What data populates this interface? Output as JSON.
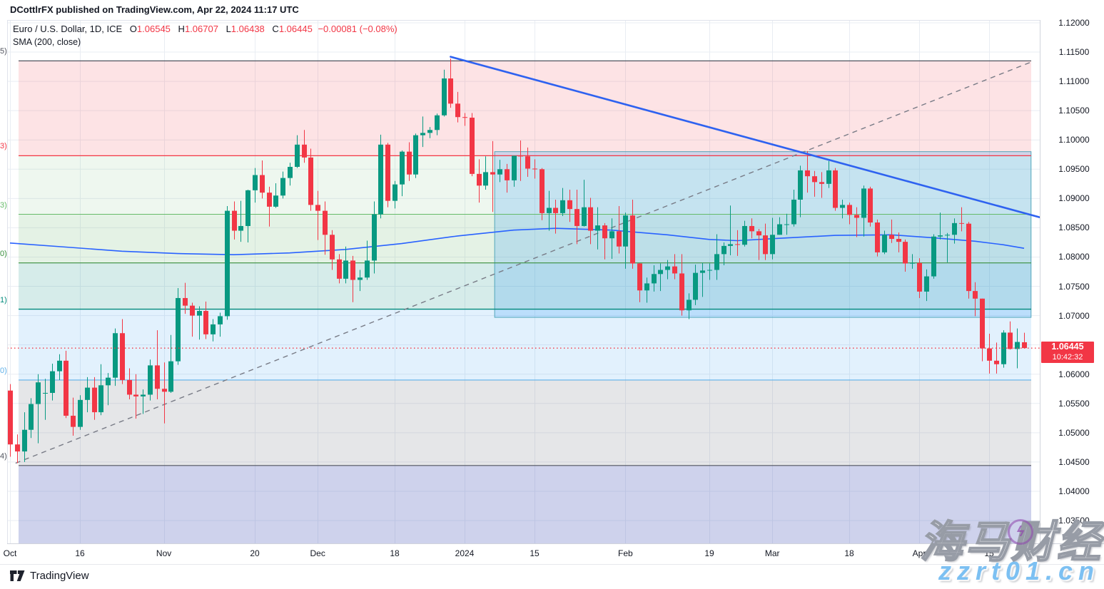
{
  "header": {
    "publisher": "DCottlrFX published on TradingView.com, Apr 22, 2024 11:17 UTC"
  },
  "legend": {
    "symbol": "Euro / U.S. Dollar, 1D, ICE",
    "o_label": "O",
    "o_val": "1.06545",
    "h_label": "H",
    "h_val": "1.06707",
    "l_label": "L",
    "l_val": "1.06438",
    "c_label": "C",
    "c_val": "1.06445",
    "change": "−0.00081 (−0.08%)",
    "indicator": "SMA (200, close)"
  },
  "price_badge": {
    "price": "1.06445",
    "countdown": "10:42:32",
    "bg": "#f23645"
  },
  "watermark": {
    "title": "海马财经",
    "site": "zzrt01.cn",
    "icon": "lightning-in-circle"
  },
  "footer": {
    "brand": "TradingView"
  },
  "chart_data": {
    "type": "candlestick",
    "title": "Euro / U.S. Dollar, 1D, ICE",
    "interval": "1D",
    "y_axis": {
      "top_price": 1.12,
      "tick_step": 0.005,
      "ticks": [
        "1.12000",
        "1.11500",
        "1.11000",
        "1.10500",
        "1.10000",
        "1.09500",
        "1.09000",
        "1.08500",
        "1.08000",
        "1.07500",
        "1.07000",
        "1.06500",
        "1.06000",
        "1.05500",
        "1.05000",
        "1.04500",
        "1.04000",
        "1.03500"
      ]
    },
    "x_ticks": [
      {
        "label": "Oct",
        "index": 0
      },
      {
        "label": "16",
        "index": 10
      },
      {
        "label": "Nov",
        "index": 22
      },
      {
        "label": "20",
        "index": 35
      },
      {
        "label": "Dec",
        "index": 44
      },
      {
        "label": "18",
        "index": 55
      },
      {
        "label": "2024",
        "index": 65
      },
      {
        "label": "15",
        "index": 75
      },
      {
        "label": "Feb",
        "index": 88
      },
      {
        "label": "19",
        "index": 100
      },
      {
        "label": "Mar",
        "index": 109
      },
      {
        "label": "18",
        "index": 120
      },
      {
        "label": "Apr",
        "index": 130
      },
      {
        "label": "15",
        "index": 140
      }
    ],
    "colors": {
      "up": "#089981",
      "down": "#f23645",
      "sma": "#2962ff",
      "trend": "#2e62f0",
      "dashed": "#787b86",
      "current": "#f23645",
      "grid": "#e9edf3",
      "separator": "#d1d4dc",
      "pane_border": "#e0e3eb"
    },
    "dates": [
      "Oct 2",
      "Oct 3",
      "Oct 4",
      "Oct 5",
      "Oct 6",
      "Oct 9",
      "Oct 10",
      "Oct 11",
      "Oct 12",
      "Oct 13",
      "Oct 16",
      "Oct 17",
      "Oct 18",
      "Oct 19",
      "Oct 20",
      "Oct 23",
      "Oct 24",
      "Oct 25",
      "Oct 26",
      "Oct 27",
      "Oct 30",
      "Oct 31",
      "Nov 1",
      "Nov 2",
      "Nov 3",
      "Nov 6",
      "Nov 7",
      "Nov 8",
      "Nov 9",
      "Nov 10",
      "Nov 13",
      "Nov 14",
      "Nov 15",
      "Nov 16",
      "Nov 17",
      "Nov 20",
      "Nov 21",
      "Nov 22",
      "Nov 23",
      "Nov 24",
      "Nov 27",
      "Nov 28",
      "Nov 29",
      "Nov 30",
      "Dec 1",
      "Dec 4",
      "Dec 5",
      "Dec 6",
      "Dec 7",
      "Dec 8",
      "Dec 11",
      "Dec 12",
      "Dec 13",
      "Dec 14",
      "Dec 15",
      "Dec 18",
      "Dec 19",
      "Dec 20",
      "Dec 21",
      "Dec 22",
      "Dec 25",
      "Dec 26",
      "Dec 27",
      "Dec 28",
      "Dec 29",
      "Jan 1",
      "Jan 2",
      "Jan 3",
      "Jan 4",
      "Jan 5",
      "Jan 8",
      "Jan 9",
      "Jan 10",
      "Jan 11",
      "Jan 12",
      "Jan 15",
      "Jan 16",
      "Jan 17",
      "Jan 18",
      "Jan 19",
      "Jan 22",
      "Jan 23",
      "Jan 24",
      "Jan 25",
      "Jan 26",
      "Jan 29",
      "Jan 30",
      "Jan 31",
      "Feb 1",
      "Feb 2",
      "Feb 5",
      "Feb 6",
      "Feb 7",
      "Feb 8",
      "Feb 9",
      "Feb 12",
      "Feb 13",
      "Feb 14",
      "Feb 15",
      "Feb 16",
      "Feb 19",
      "Feb 20",
      "Feb 21",
      "Feb 22",
      "Feb 23",
      "Feb 26",
      "Feb 27",
      "Feb 28",
      "Feb 29",
      "Mar 1",
      "Mar 4",
      "Mar 5",
      "Mar 6",
      "Mar 7",
      "Mar 8",
      "Mar 11",
      "Mar 12",
      "Mar 13",
      "Mar 14",
      "Mar 15",
      "Mar 18",
      "Mar 19",
      "Mar 20",
      "Mar 21",
      "Mar 22",
      "Mar 25",
      "Mar 26",
      "Mar 27",
      "Mar 28",
      "Mar 29",
      "Apr 1",
      "Apr 2",
      "Apr 3",
      "Apr 4",
      "Apr 5",
      "Apr 8",
      "Apr 9",
      "Apr 10",
      "Apr 11",
      "Apr 12",
      "Apr 15",
      "Apr 16",
      "Apr 17",
      "Apr 18",
      "Apr 19",
      "Apr 22"
    ],
    "ohlc": [
      [
        1.0572,
        1.0583,
        1.0459,
        1.048
      ],
      [
        1.048,
        1.0497,
        1.0448,
        1.0468
      ],
      [
        1.0468,
        1.0535,
        1.045,
        1.0505
      ],
      [
        1.0505,
        1.0559,
        1.0491,
        1.0549
      ],
      [
        1.0549,
        1.06,
        1.0482,
        1.0586
      ],
      [
        1.0567,
        1.0592,
        1.0522,
        1.0568
      ],
      [
        1.0568,
        1.0618,
        1.0555,
        1.0605
      ],
      [
        1.0605,
        1.0634,
        1.059,
        1.0623
      ],
      [
        1.0623,
        1.064,
        1.0525,
        1.0529
      ],
      [
        1.0529,
        1.056,
        1.0495,
        1.051
      ],
      [
        1.051,
        1.0564,
        1.0505,
        1.0556
      ],
      [
        1.0556,
        1.0595,
        1.0535,
        1.0577
      ],
      [
        1.0577,
        1.0595,
        1.0522,
        1.0535
      ],
      [
        1.0535,
        1.0617,
        1.053,
        1.0581
      ],
      [
        1.0581,
        1.0602,
        1.0547,
        1.0594
      ],
      [
        1.0594,
        1.0678,
        1.058,
        1.067
      ],
      [
        1.067,
        1.0694,
        1.0583,
        1.059
      ],
      [
        1.059,
        1.061,
        1.0557,
        1.0565
      ],
      [
        1.0565,
        1.06,
        1.0524,
        1.0562
      ],
      [
        1.0562,
        1.0574,
        1.0532,
        1.0565
      ],
      [
        1.0565,
        1.0625,
        1.0555,
        1.0615
      ],
      [
        1.0615,
        1.0675,
        1.0557,
        1.0575
      ],
      [
        1.0575,
        1.062,
        1.0516,
        1.057
      ],
      [
        1.057,
        1.0667,
        1.0568,
        1.0622
      ],
      [
        1.0622,
        1.0747,
        1.0616,
        1.073
      ],
      [
        1.073,
        1.0756,
        1.0703,
        1.0717
      ],
      [
        1.0717,
        1.0722,
        1.0664,
        1.07
      ],
      [
        1.07,
        1.0716,
        1.0659,
        1.0708
      ],
      [
        1.0708,
        1.0724,
        1.066,
        1.0668
      ],
      [
        1.0668,
        1.0694,
        1.0656,
        1.0685
      ],
      [
        1.0685,
        1.0705,
        1.0664,
        1.0699
      ],
      [
        1.0699,
        1.0887,
        1.0693,
        1.0879
      ],
      [
        1.0879,
        1.0895,
        1.083,
        1.0845
      ],
      [
        1.0845,
        1.0896,
        1.0826,
        1.0853
      ],
      [
        1.0853,
        1.0915,
        1.0825,
        1.0914
      ],
      [
        1.0914,
        1.0952,
        1.0893,
        1.094
      ],
      [
        1.094,
        1.0965,
        1.09,
        1.091
      ],
      [
        1.091,
        1.092,
        1.0852,
        1.0886
      ],
      [
        1.0886,
        1.0926,
        1.0884,
        1.0905
      ],
      [
        1.0905,
        1.0946,
        1.09,
        1.0935
      ],
      [
        1.0935,
        1.0961,
        1.0922,
        1.0954
      ],
      [
        1.0954,
        1.1008,
        1.0952,
        1.0992
      ],
      [
        1.0992,
        1.1017,
        1.0961,
        1.097
      ],
      [
        1.097,
        1.0985,
        1.0879,
        1.0889
      ],
      [
        1.0889,
        1.0913,
        1.0829,
        1.0879
      ],
      [
        1.0879,
        1.0895,
        1.0804,
        1.0838
      ],
      [
        1.0838,
        1.0846,
        1.0778,
        1.0796
      ],
      [
        1.0796,
        1.0805,
        1.0755,
        1.0763
      ],
      [
        1.0763,
        1.0818,
        1.0755,
        1.0794
      ],
      [
        1.0794,
        1.0802,
        1.0723,
        1.0761
      ],
      [
        1.0761,
        1.0778,
        1.0742,
        1.0765
      ],
      [
        1.0765,
        1.0828,
        1.0761,
        1.0794
      ],
      [
        1.0794,
        1.0895,
        1.0772,
        1.0873
      ],
      [
        1.0873,
        1.1009,
        1.0866,
        1.0992
      ],
      [
        1.0992,
        1.0995,
        1.0885,
        1.0896
      ],
      [
        1.0896,
        1.093,
        1.0883,
        1.0924
      ],
      [
        1.0924,
        1.0982,
        1.0904,
        1.098
      ],
      [
        1.098,
        1.0996,
        1.093,
        1.0941
      ],
      [
        1.0941,
        1.1011,
        1.0935,
        1.1008
      ],
      [
        1.1008,
        1.104,
        1.0988,
        1.1012
      ],
      [
        1.1012,
        1.1022,
        1.1003,
        1.1017
      ],
      [
        1.1017,
        1.1045,
        1.1008,
        1.1042
      ],
      [
        1.1042,
        1.112,
        1.104,
        1.1105
      ],
      [
        1.1105,
        1.1139,
        1.1055,
        1.1062
      ],
      [
        1.1062,
        1.1082,
        1.103,
        1.1039
      ],
      [
        1.1039,
        1.1046,
        1.1024,
        1.1038
      ],
      [
        1.1038,
        1.1046,
        1.0938,
        1.0942
      ],
      [
        1.0942,
        1.0967,
        1.0893,
        1.0922
      ],
      [
        1.0922,
        1.0972,
        1.0915,
        1.0945
      ],
      [
        1.0945,
        1.0998,
        1.0877,
        1.0941
      ],
      [
        1.0941,
        1.0966,
        1.0928,
        1.095
      ],
      [
        1.095,
        1.0959,
        1.091,
        1.0931
      ],
      [
        1.0931,
        1.0972,
        1.092,
        1.0973
      ],
      [
        1.0973,
        1.0999,
        1.093,
        1.0972
      ],
      [
        1.0972,
        1.0987,
        1.0937,
        1.0951
      ],
      [
        1.0951,
        1.0967,
        1.0934,
        1.095
      ],
      [
        1.095,
        1.0952,
        1.0863,
        1.0875
      ],
      [
        1.0875,
        1.0913,
        1.0845,
        1.0884
      ],
      [
        1.0884,
        1.0898,
        1.084,
        1.0875
      ],
      [
        1.0875,
        1.0918,
        1.087,
        1.0897
      ],
      [
        1.0897,
        1.0915,
        1.086,
        1.0882
      ],
      [
        1.0882,
        1.0915,
        1.0822,
        1.0853
      ],
      [
        1.0853,
        1.0932,
        1.0852,
        1.0885
      ],
      [
        1.0885,
        1.0901,
        1.0822,
        1.0845
      ],
      [
        1.0845,
        1.0885,
        1.0813,
        1.0854
      ],
      [
        1.0854,
        1.0858,
        1.0796,
        1.0832
      ],
      [
        1.0832,
        1.0866,
        1.0797,
        1.0844
      ],
      [
        1.0844,
        1.0887,
        1.0806,
        1.0818
      ],
      [
        1.0818,
        1.0876,
        1.078,
        1.0871
      ],
      [
        1.0871,
        1.0898,
        1.078,
        1.0789
      ],
      [
        1.0789,
        1.079,
        1.0723,
        1.0743
      ],
      [
        1.0743,
        1.0765,
        1.0722,
        1.0755
      ],
      [
        1.0755,
        1.0786,
        1.0741,
        1.0771
      ],
      [
        1.0771,
        1.0789,
        1.0742,
        1.0778
      ],
      [
        1.0778,
        1.0795,
        1.0762,
        1.0784
      ],
      [
        1.0784,
        1.0805,
        1.0762,
        1.0772
      ],
      [
        1.0772,
        1.0805,
        1.07,
        1.0709
      ],
      [
        1.0709,
        1.0738,
        1.0694,
        1.0727
      ],
      [
        1.0727,
        1.0787,
        1.0718,
        1.0773
      ],
      [
        1.0773,
        1.079,
        1.0732,
        1.0777
      ],
      [
        1.0777,
        1.0789,
        1.0761,
        1.0778
      ],
      [
        1.0778,
        1.0839,
        1.0761,
        1.0805
      ],
      [
        1.0805,
        1.0825,
        1.0786,
        1.0819
      ],
      [
        1.0819,
        1.0888,
        1.0803,
        1.0822
      ],
      [
        1.0822,
        1.0846,
        1.0802,
        1.0821
      ],
      [
        1.0821,
        1.0862,
        1.0818,
        1.0853
      ],
      [
        1.0853,
        1.0866,
        1.0832,
        1.0844
      ],
      [
        1.0844,
        1.0848,
        1.0795,
        1.0837
      ],
      [
        1.0837,
        1.0857,
        1.0795,
        1.0805
      ],
      [
        1.0805,
        1.0867,
        1.0796,
        1.0838
      ],
      [
        1.0838,
        1.0868,
        1.0838,
        1.0856
      ],
      [
        1.0856,
        1.0874,
        1.0838,
        1.0856
      ],
      [
        1.0856,
        1.0915,
        1.0852,
        1.0898
      ],
      [
        1.0898,
        1.0956,
        1.0868,
        1.0948
      ],
      [
        1.0948,
        1.0981,
        1.091,
        1.0938
      ],
      [
        1.0938,
        1.0947,
        1.0903,
        1.0928
      ],
      [
        1.0928,
        1.0945,
        1.0901,
        1.0925
      ],
      [
        1.0925,
        1.0964,
        1.0918,
        1.0948
      ],
      [
        1.0948,
        1.0952,
        1.0879,
        1.0884
      ],
      [
        1.0884,
        1.0898,
        1.0866,
        1.0889
      ],
      [
        1.0889,
        1.0893,
        1.0856,
        1.0872
      ],
      [
        1.0872,
        1.0885,
        1.0834,
        1.0867
      ],
      [
        1.0867,
        1.0922,
        1.0835,
        1.0917
      ],
      [
        1.0917,
        1.092,
        1.0852,
        1.0859
      ],
      [
        1.0859,
        1.0864,
        1.0801,
        1.0808
      ],
      [
        1.0808,
        1.0845,
        1.0805,
        1.0838
      ],
      [
        1.0838,
        1.0864,
        1.0824,
        1.0831
      ],
      [
        1.0831,
        1.0842,
        1.0808,
        1.0826
      ],
      [
        1.0826,
        1.083,
        1.0775,
        1.0789
      ],
      [
        1.0789,
        1.0805,
        1.078,
        1.079
      ],
      [
        1.079,
        1.0798,
        1.073,
        1.0741
      ],
      [
        1.0741,
        1.0779,
        1.0725,
        1.0767
      ],
      [
        1.0767,
        1.0839,
        1.0763,
        1.0835
      ],
      [
        1.0835,
        1.0876,
        1.083,
        1.0837
      ],
      [
        1.0837,
        1.0841,
        1.0791,
        1.0838
      ],
      [
        1.0838,
        1.0866,
        1.0823,
        1.0858
      ],
      [
        1.0858,
        1.0885,
        1.0844,
        1.0857
      ],
      [
        1.0857,
        1.086,
        1.0729,
        1.0742
      ],
      [
        1.0742,
        1.0757,
        1.0699,
        1.0729
      ],
      [
        1.0729,
        1.0729,
        1.0622,
        1.0644
      ],
      [
        1.0644,
        1.0669,
        1.0601,
        1.0623
      ],
      [
        1.0623,
        1.0654,
        1.0601,
        1.0617
      ],
      [
        1.0617,
        1.0675,
        1.0611,
        1.0671
      ],
      [
        1.0671,
        1.069,
        1.0642,
        1.0643
      ],
      [
        1.0643,
        1.0678,
        1.061,
        1.0655
      ],
      [
        1.06545,
        1.06707,
        1.06438,
        1.06445
      ]
    ],
    "sma": {
      "label": "SMA (200, close)",
      "color": "#2962ff",
      "points": [
        [
          0,
          1.0824
        ],
        [
          8,
          1.0817
        ],
        [
          16,
          1.081
        ],
        [
          24,
          1.0806
        ],
        [
          32,
          1.0804
        ],
        [
          40,
          1.0807
        ],
        [
          48,
          1.0813
        ],
        [
          56,
          1.0823
        ],
        [
          64,
          1.0836
        ],
        [
          72,
          1.0846
        ],
        [
          78,
          1.0849
        ],
        [
          86,
          1.0846
        ],
        [
          94,
          1.0838
        ],
        [
          100,
          1.083
        ],
        [
          104,
          1.0828
        ],
        [
          110,
          1.0832
        ],
        [
          118,
          1.0837
        ],
        [
          126,
          1.0838
        ],
        [
          132,
          1.0833
        ],
        [
          138,
          1.0827
        ],
        [
          142,
          1.0821
        ],
        [
          145,
          1.0815
        ]
      ]
    },
    "levels": [
      {
        "price": 1.1135,
        "color": "#50535e",
        "tail": "5)",
        "width": 1.2
      },
      {
        "price": 1.0973,
        "color": "#f23645",
        "tail": "3)",
        "width": 1.2
      },
      {
        "price": 1.0873,
        "color": "#66bb6a",
        "tail": "3)",
        "width": 1
      },
      {
        "price": 1.079,
        "color": "#388e3c",
        "tail": "0)",
        "width": 1.2
      },
      {
        "price": 1.0711,
        "color": "#00897b",
        "tail": "1)",
        "width": 1.4
      },
      {
        "price": 1.059,
        "color": "#5fb0e8",
        "tail": "0)",
        "width": 1.2
      },
      {
        "price": 1.0444,
        "color": "#50535e",
        "tail": "4)",
        "width": 1.2
      }
    ],
    "zones": [
      {
        "top": 1.1135,
        "bottom": 1.0973,
        "fill": "rgba(242,54,69,0.14)"
      },
      {
        "top": 1.0973,
        "bottom": 1.0873,
        "fill": "rgba(103,183,113,0.11)"
      },
      {
        "top": 1.0873,
        "bottom": 1.079,
        "fill": "rgba(103,183,113,0.18)"
      },
      {
        "top": 1.079,
        "bottom": 1.0711,
        "fill": "rgba(0,137,123,0.16)"
      },
      {
        "top": 1.0711,
        "bottom": 1.059,
        "fill": "rgba(33,150,243,0.13)"
      },
      {
        "top": 1.059,
        "bottom": 1.0444,
        "fill": "rgba(125,129,141,0.20)"
      },
      {
        "top": 1.0444,
        "bottom": 1.031,
        "fill": "rgba(92,107,192,0.30)"
      }
    ],
    "box": {
      "from_index": 69.3,
      "to_index": 146,
      "top": 1.098,
      "bottom": 1.0697,
      "fill": "rgba(33,150,243,0.20)",
      "border": "rgba(69,160,181,0.9)"
    },
    "trendlines": [
      {
        "name": "descending-resistance",
        "from_index": 63,
        "from_price": 1.1142,
        "to_index": 147.2,
        "to_price": 1.0868,
        "color": "#2e62f0",
        "width": 2.6,
        "dash": ""
      },
      {
        "name": "ascending-support-dashed",
        "from_index": 0.8,
        "from_price": 1.0448,
        "to_index": 146,
        "to_price": 1.1133,
        "color": "#787b86",
        "width": 1.4,
        "dash": "7,6"
      }
    ],
    "current_price": {
      "value": 1.06445,
      "color": "#f23645"
    }
  }
}
